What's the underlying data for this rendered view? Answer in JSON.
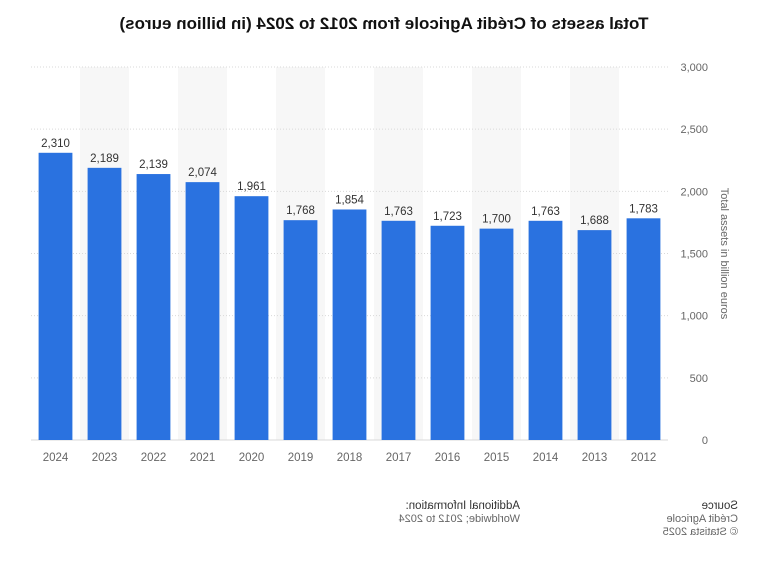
{
  "chart_data": {
    "type": "bar",
    "title": "Total assets of Crédit Agricole from 2012 to 2024 (in billion euros)",
    "xlabel": "",
    "ylabel": "Total assets in billion euros",
    "categories": [
      "2012",
      "2013",
      "2014",
      "2015",
      "2016",
      "2017",
      "2018",
      "2019",
      "2020",
      "2021",
      "2022",
      "2023",
      "2024"
    ],
    "values": [
      1783,
      1688,
      1763,
      1700,
      1723,
      1763,
      1854,
      1768,
      1961,
      2074,
      2139,
      2189,
      2310
    ],
    "value_labels": [
      "1,783",
      "1,688",
      "1,763",
      "1,700",
      "1,723",
      "1,763",
      "1,854",
      "1,768",
      "1,961",
      "2,074",
      "2,139",
      "2,189",
      "2,310"
    ],
    "ylim": [
      0,
      3000
    ],
    "yticks": [
      0,
      500,
      1000,
      1500,
      2000,
      2500,
      3000
    ],
    "ytick_labels": [
      "0",
      "500",
      "1,000",
      "1,500",
      "2,000",
      "2,500",
      "3,000"
    ],
    "bar_color": "#2a72e0",
    "grid": true
  },
  "footer": {
    "source_head": "Source",
    "source_line1": "Crédit Agricole",
    "source_line2": "© Statista 2025",
    "info_head": "Additional Information:",
    "info_line1": "Worldwide; 2012 to 2024"
  }
}
